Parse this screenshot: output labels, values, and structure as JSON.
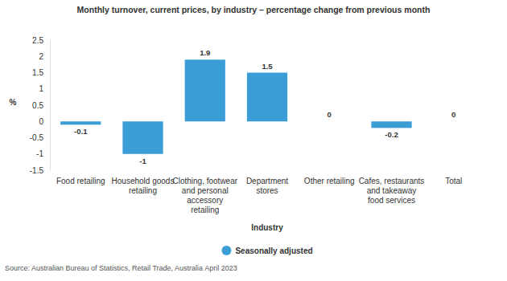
{
  "chart_data": {
    "type": "bar",
    "title": "Monthly turnover, current prices, by industry – percentage change from previous month",
    "x_label": "Industry",
    "y_label": "%",
    "source": "Source: Australian Bureau of Statistics, Retail Trade, Australia April 2023",
    "categories": [
      "Food retailing",
      "Household goods retailing",
      "Clothing, footwear and personal accessory retailing",
      "Department stores",
      "Other retailing",
      "Cafes, restaurants and takeaway food services",
      "Total"
    ],
    "series": [
      {
        "name": "Seasonally adjusted",
        "color": "#3a9dd6",
        "values": [
          -0.1,
          -1,
          1.9,
          1.5,
          0,
          -0.2,
          0
        ]
      }
    ],
    "ylim": [
      -1.5,
      2.5
    ],
    "yticks": [
      -1.5,
      -1,
      -0.5,
      0,
      0.5,
      1,
      1.5,
      2,
      2.5
    ],
    "grid": false,
    "legend": "bottom",
    "data_labels": true
  }
}
